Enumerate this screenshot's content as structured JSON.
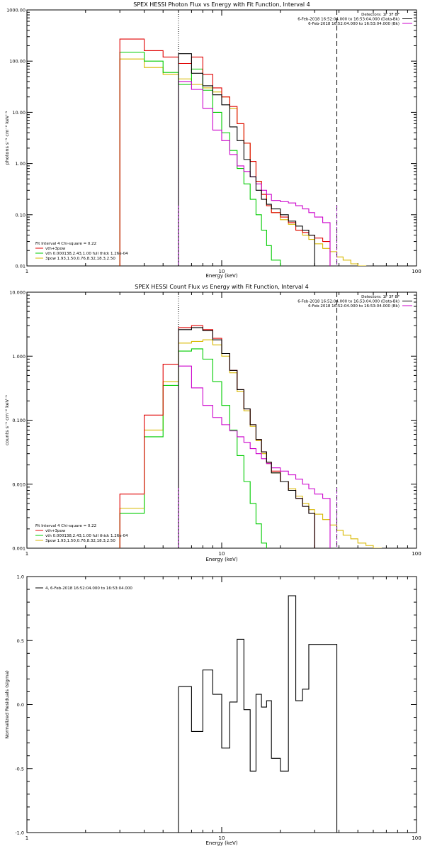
{
  "chart_data": [
    {
      "type": "line",
      "title": "SPEX HESSI Photon Flux vs Energy with Fit Function, Interval 4",
      "xlabel": "Energy (keV)",
      "ylabel": "photons s⁻¹ cm⁻² keV⁻¹",
      "xscale": "log",
      "yscale": "log",
      "xlim": [
        1,
        100
      ],
      "ylim": [
        0.01,
        1000
      ],
      "x_ticks": [
        "1",
        "10",
        "100"
      ],
      "y_ticks": [
        "0.01",
        "0.10",
        "1.00",
        "10.00",
        "100.00",
        "1000.00"
      ],
      "legend_right": [
        "Detectors: 1F 3F 8F",
        "6-Feb-2018 16:52:04.000 to 16:53:04.000 (Data-Bk)",
        "6-Feb-2018 16:52:04.000 to 16:53:04.000 (Bk)"
      ],
      "legend_left": [
        "Fit Interval 4   Chi-square = 0.22",
        "vth+3pow",
        "vth 0.000138,2.43,1.00  full thick 1.26e-04",
        "3pow 1.93,1.50,0.76,8.32,18.3,2.50"
      ],
      "colors": {
        "data": "#000000",
        "fit": "#e00000",
        "vth": "#00cc00",
        "pow": "#d8b800",
        "bk": "#cc00cc"
      },
      "vlines": [
        {
          "x": 6,
          "style": "dotted"
        },
        {
          "x": 39,
          "style": "dashed"
        }
      ],
      "edges": [
        3,
        4,
        5,
        6,
        7,
        8,
        9,
        10,
        11,
        12,
        13,
        14,
        15,
        16,
        17,
        18,
        20,
        22,
        24,
        26,
        28,
        30,
        33,
        36,
        39,
        42,
        46,
        50,
        55,
        60
      ],
      "series": [
        {
          "name": "Data-Bk",
          "key": "data",
          "values": [
            null,
            null,
            null,
            140,
            58,
            33,
            22,
            14,
            5.2,
            2.8,
            1.2,
            0.55,
            0.3,
            0.2,
            0.16,
            0.13,
            0.1,
            0.075,
            0.06,
            0.05,
            0.04,
            null,
            null,
            null,
            null,
            null,
            null,
            null,
            null
          ]
        },
        {
          "name": "Bk",
          "key": "bk",
          "values": [
            null,
            null,
            null,
            40,
            28,
            12,
            4.5,
            2.8,
            1.5,
            0.9,
            0.7,
            0.55,
            0.4,
            0.3,
            0.25,
            0.19,
            0.18,
            0.17,
            0.15,
            0.13,
            0.11,
            0.09,
            0.07,
            null,
            null,
            null,
            null,
            null,
            null
          ]
        },
        {
          "name": "vth+3pow",
          "key": "fit",
          "values": [
            270,
            160,
            120,
            90,
            120,
            55,
            30,
            20,
            13,
            6,
            2.5,
            1.1,
            0.45,
            0.25,
            0.15,
            0.11,
            0.09,
            0.07,
            0.05,
            0.045,
            0.04,
            0.035,
            0.03,
            null,
            null,
            null,
            null,
            null,
            null
          ]
        },
        {
          "name": "vth",
          "key": "vth",
          "values": [
            150,
            100,
            60,
            35,
            70,
            27,
            10,
            4,
            1.8,
            0.8,
            0.4,
            0.2,
            0.1,
            0.05,
            0.025,
            0.013,
            null,
            null,
            null,
            null,
            null,
            null,
            null,
            null,
            null,
            null,
            null,
            null,
            null
          ]
        },
        {
          "name": "3pow",
          "key": "pow",
          "values": [
            110,
            75,
            55,
            45,
            35,
            30,
            25,
            20,
            12,
            6,
            2.5,
            1.1,
            0.45,
            0.25,
            0.15,
            0.11,
            0.08,
            0.065,
            0.05,
            0.04,
            0.033,
            0.027,
            0.022,
            0.019,
            0.015,
            0.013,
            0.011,
            0.01,
            null
          ]
        }
      ]
    },
    {
      "type": "line",
      "title": "SPEX HESSI Count Flux vs Energy with Fit Function, Interval 4",
      "xlabel": "Energy (keV)",
      "ylabel": "counts s⁻¹ cm⁻² keV⁻¹",
      "xscale": "log",
      "yscale": "log",
      "xlim": [
        1,
        100
      ],
      "ylim": [
        0.001,
        10
      ],
      "x_ticks": [
        "1",
        "10",
        "100"
      ],
      "y_ticks": [
        "0.001",
        "0.010",
        "0.100",
        "1.000",
        "10.000"
      ],
      "legend_right": [
        "Detectors: 1F 3F 8F",
        "6-Feb-2018 16:52:04.000 to 16:53:04.000 (Data-Bk)",
        "6-Feb-2018 16:52:04.000 to 16:53:04.000 (Bk)"
      ],
      "legend_left": [
        "Fit Interval 4   Chi-square = 0.22",
        "vth+3pow",
        "vth 0.000138,2.43,1.00  full thick 1.26e-04",
        "3pow 1.93,1.50,0.76,8.32,18.3,2.50"
      ],
      "colors": {
        "data": "#000000",
        "fit": "#e00000",
        "vth": "#00cc00",
        "pow": "#d8b800",
        "bk": "#cc00cc"
      },
      "vlines": [
        {
          "x": 6,
          "style": "dotted"
        },
        {
          "x": 39,
          "style": "dashed"
        }
      ],
      "edges": [
        3,
        4,
        5,
        6,
        7,
        8,
        9,
        10,
        11,
        12,
        13,
        14,
        15,
        16,
        17,
        18,
        20,
        22,
        24,
        26,
        28,
        30,
        33,
        36,
        39,
        42,
        46,
        50,
        55,
        60,
        66,
        72,
        80
      ],
      "series": [
        {
          "name": "Data-Bk",
          "key": "data",
          "values": [
            null,
            null,
            null,
            2.6,
            2.8,
            2.5,
            1.8,
            1.1,
            0.6,
            0.3,
            0.15,
            0.085,
            0.05,
            0.032,
            0.022,
            0.015,
            0.011,
            0.008,
            0.006,
            0.0045,
            0.0035,
            null,
            null,
            null,
            null,
            null,
            null,
            null,
            null,
            null,
            null,
            null
          ]
        },
        {
          "name": "Bk",
          "key": "bk",
          "values": [
            null,
            null,
            null,
            0.7,
            0.32,
            0.17,
            0.11,
            0.085,
            0.068,
            0.055,
            0.045,
            0.036,
            0.03,
            0.025,
            0.021,
            0.018,
            0.016,
            0.014,
            0.012,
            0.01,
            0.0085,
            0.007,
            0.006,
            null,
            null,
            null,
            null,
            null,
            null,
            null,
            null,
            null
          ]
        },
        {
          "name": "vth+3pow",
          "key": "fit",
          "values": [
            0.007,
            0.12,
            0.75,
            2.8,
            3.0,
            2.6,
            1.9,
            1.1,
            0.6,
            0.3,
            0.15,
            0.085,
            0.05,
            0.032,
            0.022,
            0.016,
            0.011,
            0.008,
            0.006,
            0.0045,
            0.0035,
            null,
            null,
            null,
            null,
            null,
            null,
            null,
            null,
            null,
            null,
            null
          ]
        },
        {
          "name": "vth",
          "key": "vth",
          "values": [
            0.0035,
            0.055,
            0.35,
            1.2,
            1.3,
            0.9,
            0.4,
            0.17,
            0.07,
            0.028,
            0.011,
            0.005,
            0.0024,
            0.0012,
            null,
            null,
            null,
            null,
            null,
            null,
            null,
            null,
            null,
            null,
            null,
            null,
            null,
            null,
            null,
            null,
            null,
            null
          ]
        },
        {
          "name": "3pow",
          "key": "pow",
          "values": [
            0.0042,
            0.07,
            0.4,
            1.6,
            1.7,
            1.8,
            1.5,
            1.0,
            0.55,
            0.28,
            0.14,
            0.08,
            0.048,
            0.03,
            0.021,
            0.015,
            0.011,
            0.0085,
            0.0065,
            0.005,
            0.004,
            0.0034,
            0.0028,
            0.0023,
            0.0019,
            0.0016,
            0.0014,
            0.0012,
            0.0011,
            0.001,
            null,
            null
          ]
        }
      ]
    },
    {
      "type": "line",
      "title": "",
      "xlabel": "Energy (keV)",
      "ylabel": "Normalized Residuals (sigma)",
      "xscale": "log",
      "yscale": "linear",
      "xlim": [
        1,
        100
      ],
      "ylim": [
        -1.0,
        1.0
      ],
      "x_ticks": [
        "1",
        "10",
        "100"
      ],
      "y_ticks": [
        "-1.0",
        "-0.5",
        "0.0",
        "0.5",
        "1.0"
      ],
      "legend_left": [
        "4,  6-Feb-2018 16:52:04.000 to 16:53:04.000"
      ],
      "colors": {
        "data": "#000000"
      },
      "edges": [
        6,
        7,
        8,
        9,
        10,
        11,
        12,
        13,
        14,
        15,
        16,
        17,
        18,
        20,
        22,
        24,
        26,
        28,
        30,
        33,
        36,
        39
      ],
      "series": [
        {
          "name": "4,  6-Feb-2018 16:52:04.000 to 16:53:04.000",
          "key": "data",
          "values": [
            0.14,
            -0.21,
            0.27,
            0.08,
            -0.34,
            0.02,
            0.51,
            -0.04,
            -0.52,
            0.08,
            -0.02,
            0.03,
            -0.42,
            -0.52,
            0.85,
            0.03,
            0.12,
            0.47,
            0.47,
            0.47,
            0.47
          ]
        }
      ]
    }
  ]
}
